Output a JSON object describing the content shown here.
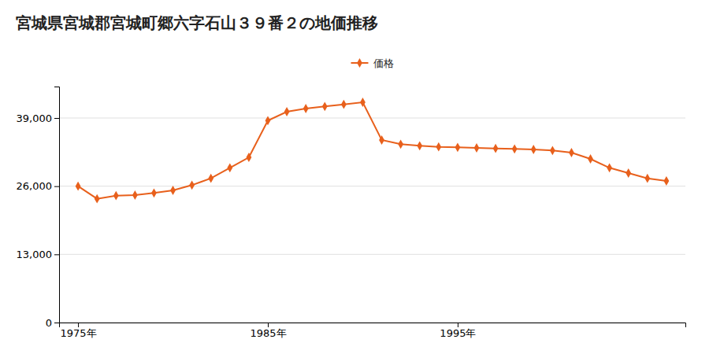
{
  "chart_data": {
    "type": "line",
    "title": "宮城県宮城郡宮城町郷六字石山３９番２の地価推移",
    "x": [
      1975,
      1976,
      1977,
      1978,
      1979,
      1980,
      1981,
      1982,
      1983,
      1984,
      1985,
      1986,
      1987,
      1988,
      1989,
      1990,
      1991,
      1992,
      1993,
      1994,
      1995,
      1996,
      1997,
      1998,
      1999,
      2000,
      2001,
      2002,
      2003,
      2004,
      2005,
      2006
    ],
    "series": [
      {
        "name": "価格",
        "color": "#e8601c",
        "marker": "diamond",
        "values": [
          26000,
          23600,
          24200,
          24300,
          24700,
          25200,
          26200,
          27500,
          29500,
          31500,
          38500,
          40200,
          40800,
          41200,
          41600,
          42000,
          34800,
          34000,
          33700,
          33500,
          33400,
          33300,
          33200,
          33100,
          33000,
          32800,
          32400,
          31200,
          29500,
          28500,
          27500,
          27000
        ]
      }
    ],
    "xlim": [
      1974,
      2007
    ],
    "xticks": [
      {
        "value": 1975,
        "label": "1975年"
      },
      {
        "value": 1985,
        "label": "1985年"
      },
      {
        "value": 1995,
        "label": "1995年"
      }
    ],
    "ylim": [
      0,
      45000
    ],
    "yticks": [
      0,
      {
        "value": 13000,
        "label": "13,000"
      },
      {
        "value": 26000,
        "label": "26,000"
      },
      {
        "value": 39000,
        "label": "39,000"
      }
    ],
    "grid": true,
    "legend": "top"
  }
}
